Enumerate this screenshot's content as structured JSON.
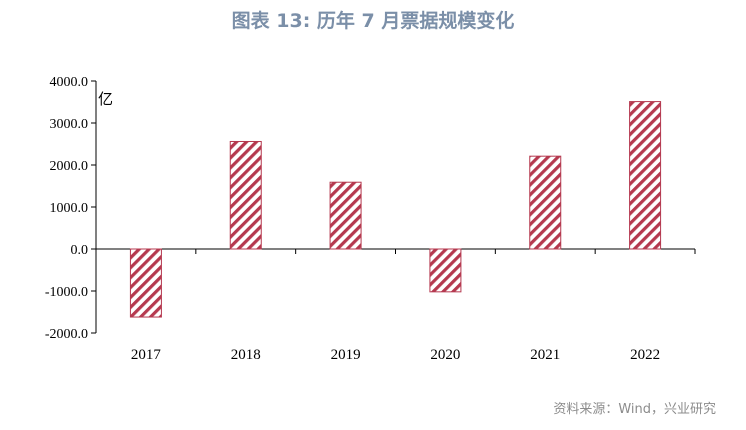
{
  "title": "图表 13: 历年 7 月票据规模变化",
  "source": "资料来源：Wind，兴业研究",
  "colors": {
    "title": "#7b8fa8",
    "bar_stroke": "#b5394f",
    "hatch": "#b5394f",
    "axis": "#000000"
  },
  "chart_data": {
    "type": "bar",
    "title": "图表 13: 历年 7 月票据规模变化",
    "ylabel": "亿",
    "xlabel": "",
    "categories": [
      "2017",
      "2018",
      "2019",
      "2020",
      "2021",
      "2022"
    ],
    "series": [
      {
        "values": [
          -1620,
          2560,
          1590,
          -1020,
          2210,
          3510
        ]
      }
    ],
    "ylim": [
      -2000,
      4000
    ],
    "yticks": [
      "4000.0",
      "3000.0",
      "2000.0",
      "1000.0",
      "0.0",
      "-1000.0",
      "-2000.0"
    ],
    "ytick_values": [
      4000,
      3000,
      2000,
      1000,
      0,
      -1000,
      -2000
    ],
    "fill": "diagonal-hatch",
    "grid": false,
    "legend": "none"
  }
}
